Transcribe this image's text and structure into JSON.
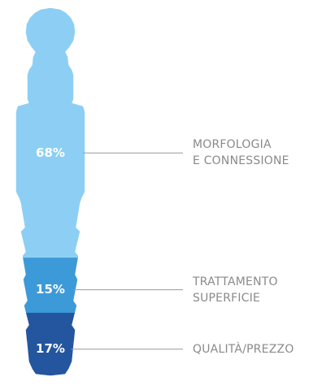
{
  "chart_data": {
    "type": "implant",
    "categories": [
      "MORFOLOGIA\nE CONNESSIONE",
      "TRATTAMENTO\nSUPERFICIE",
      "QUALITÀ/PREZZO"
    ],
    "values": [
      68,
      15,
      17
    ],
    "value_labels": [
      "68%",
      "15%",
      "17%"
    ],
    "colors": [
      "#8dcff4",
      "#3d9ad8",
      "#24559f"
    ]
  }
}
